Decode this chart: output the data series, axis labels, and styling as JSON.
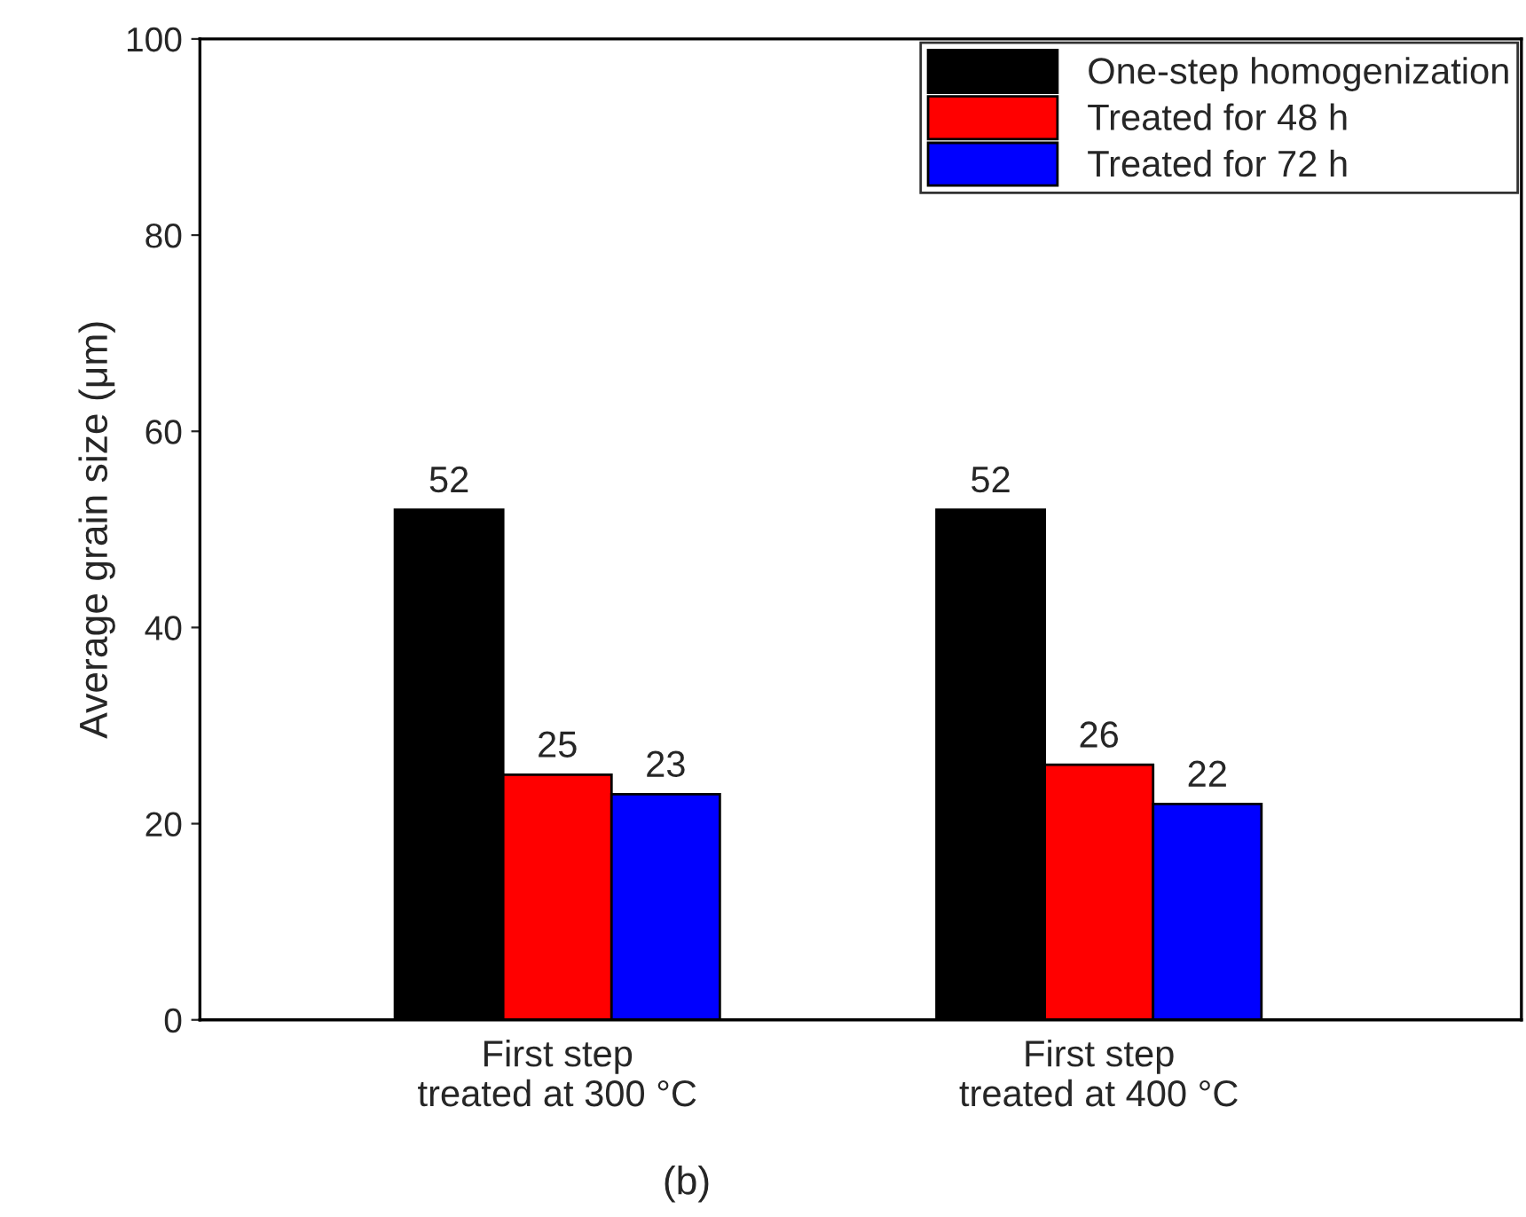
{
  "chart_data": {
    "type": "bar",
    "categories": [
      "First step\ntreated at 300 °C",
      "First step\ntreated at 400 °C"
    ],
    "series": [
      {
        "name": "One-step homogenization",
        "color": "#000000",
        "values": [
          52,
          52
        ]
      },
      {
        "name": "Treated for 48 h",
        "color": "#ff0000",
        "values": [
          25,
          26
        ]
      },
      {
        "name": "Treated for 72 h",
        "color": "#0000ff",
        "values": [
          23,
          22
        ]
      }
    ],
    "ylabel": "Average grain size (μm)",
    "ylim": [
      0,
      100
    ],
    "yticks": [
      0,
      20,
      40,
      60,
      80,
      100
    ],
    "data_labels": true,
    "legend": "top right",
    "grid": false,
    "annotations": [
      "(b)"
    ]
  }
}
